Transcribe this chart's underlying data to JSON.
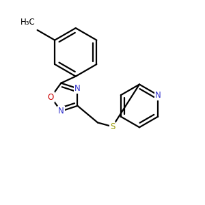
{
  "background_color": "#ffffff",
  "atom_colors": {
    "C": "#000000",
    "N": "#3333cc",
    "O": "#cc0000",
    "S": "#999900"
  },
  "line_color": "#000000",
  "line_width": 1.6,
  "font_size_atom": 8.5
}
